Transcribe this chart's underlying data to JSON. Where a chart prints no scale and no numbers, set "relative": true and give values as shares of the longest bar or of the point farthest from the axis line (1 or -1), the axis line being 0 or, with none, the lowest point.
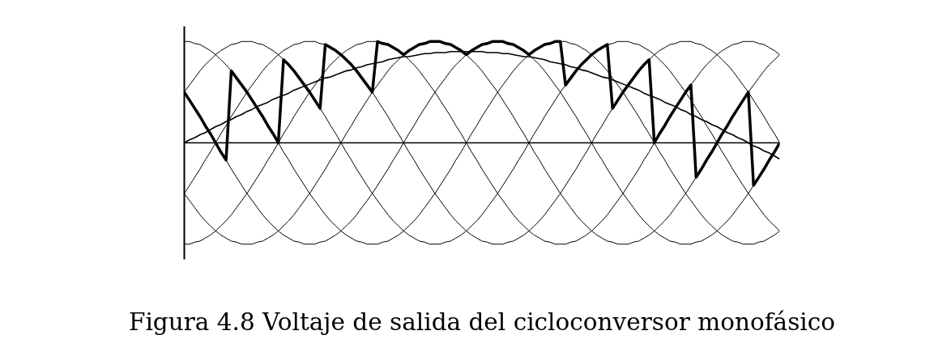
{
  "chart_data": {
    "type": "line",
    "relative": true,
    "title": "Figura 4.8 Voltaje de salida del cicloconversor monofásico",
    "categories": [
      null,
      null,
      null,
      null,
      null,
      null,
      null,
      null,
      null,
      null,
      null,
      null,
      null,
      null,
      null,
      null,
      null,
      null,
      null,
      null,
      null,
      null,
      null,
      null,
      null,
      null,
      null,
      null,
      null,
      null,
      null,
      null,
      null,
      null,
      null,
      null,
      null,
      null,
      null,
      null,
      null,
      null,
      null,
      null,
      null,
      null,
      null,
      null,
      null,
      null,
      null,
      null,
      null,
      null,
      null,
      null,
      null,
      null,
      null,
      null,
      null,
      null,
      null,
      null,
      null,
      null,
      null,
      null,
      null,
      null,
      null,
      null,
      null,
      null,
      null,
      null,
      null,
      null,
      null,
      null,
      null,
      null,
      null,
      null,
      null,
      null,
      null,
      null,
      null,
      null,
      null,
      null,
      null,
      null,
      null,
      null,
      null,
      null,
      null,
      null,
      null,
      null,
      null,
      null,
      null,
      null,
      null,
      null,
      null,
      null,
      null,
      null,
      null,
      null,
      null
    ],
    "series": [
      {
        "color": "#000000",
        "values": [
          1,
          1,
          0.98,
          0.97,
          0.94,
          0.91,
          0.87,
          0.82,
          0.77,
          0.71,
          0.64,
          0.57,
          0.5,
          0.42,
          0.34,
          0.26,
          0.17,
          0.09,
          0,
          -0.09,
          -0.17,
          -0.26,
          -0.34,
          -0.42,
          -0.5,
          -0.57,
          -0.64,
          -0.71,
          -0.77,
          -0.82,
          -0.87,
          -0.91,
          -0.94,
          -0.97,
          -0.98,
          -1,
          -1,
          -1,
          -0.98,
          -0.97,
          -0.94,
          -0.91,
          -0.87,
          -0.82,
          -0.77,
          -0.71,
          -0.64,
          -0.57,
          -0.5,
          -0.42,
          -0.34,
          -0.26,
          -0.17,
          -0.09,
          0,
          0.09,
          0.17,
          0.26,
          0.34,
          0.42,
          0.5,
          0.57,
          0.64,
          0.71,
          0.77,
          0.82,
          0.87,
          0.91,
          0.94,
          0.97,
          0.98,
          1,
          1,
          1,
          0.98,
          0.97,
          0.94,
          0.91,
          0.87,
          0.82,
          0.77,
          0.71,
          0.64,
          0.57,
          0.5,
          0.42,
          0.34,
          0.26,
          0.17,
          0.09,
          0,
          -0.09,
          -0.17,
          -0.26,
          -0.34,
          -0.42,
          -0.5,
          -0.57,
          -0.64,
          -0.71,
          -0.77,
          -0.82,
          -0.87,
          -0.91,
          -0.94,
          -0.97,
          -0.98,
          -1,
          -1,
          -1,
          -0.98,
          -0.97,
          -0.94,
          -0.91,
          -0.87
        ]
      },
      {
        "color": "#000000",
        "values": [
          0.5,
          0.57,
          0.64,
          0.71,
          0.77,
          0.82,
          0.87,
          0.91,
          0.94,
          0.97,
          0.98,
          1,
          1,
          1,
          0.98,
          0.97,
          0.94,
          0.91,
          0.87,
          0.82,
          0.77,
          0.71,
          0.64,
          0.57,
          0.5,
          0.42,
          0.34,
          0.26,
          0.17,
          0.09,
          0,
          -0.09,
          -0.17,
          -0.26,
          -0.34,
          -0.42,
          -0.5,
          -0.57,
          -0.64,
          -0.71,
          -0.77,
          -0.82,
          -0.87,
          -0.91,
          -0.94,
          -0.97,
          -0.98,
          -1,
          -1,
          -1,
          -0.98,
          -0.97,
          -0.94,
          -0.91,
          -0.87,
          -0.82,
          -0.77,
          -0.71,
          -0.64,
          -0.57,
          -0.5,
          -0.42,
          -0.34,
          -0.26,
          -0.17,
          -0.09,
          0,
          0.09,
          0.17,
          0.26,
          0.34,
          0.42,
          0.5,
          0.57,
          0.64,
          0.71,
          0.77,
          0.82,
          0.87,
          0.91,
          0.94,
          0.97,
          0.98,
          1,
          1,
          1,
          0.98,
          0.97,
          0.94,
          0.91,
          0.87,
          0.82,
          0.77,
          0.71,
          0.64,
          0.57,
          0.5,
          0.42,
          0.34,
          0.26,
          0.17,
          0.09,
          0,
          -0.09,
          -0.17,
          -0.26,
          -0.34,
          -0.42,
          -0.5,
          -0.57,
          -0.64,
          -0.71,
          -0.77,
          -0.82,
          -0.87
        ]
      },
      {
        "color": "#000000",
        "values": [
          -0.5,
          -0.42,
          -0.34,
          -0.26,
          -0.17,
          -0.09,
          0,
          0.09,
          0.17,
          0.26,
          0.34,
          0.42,
          0.5,
          0.57,
          0.64,
          0.71,
          0.77,
          0.82,
          0.87,
          0.91,
          0.94,
          0.97,
          0.98,
          1,
          1,
          1,
          0.98,
          0.97,
          0.94,
          0.91,
          0.87,
          0.82,
          0.77,
          0.71,
          0.64,
          0.57,
          0.5,
          0.42,
          0.34,
          0.26,
          0.17,
          0.09,
          0,
          -0.09,
          -0.17,
          -0.26,
          -0.34,
          -0.42,
          -0.5,
          -0.57,
          -0.64,
          -0.71,
          -0.77,
          -0.82,
          -0.87,
          -0.91,
          -0.94,
          -0.97,
          -0.98,
          -1,
          -1,
          -1,
          -0.98,
          -0.97,
          -0.94,
          -0.91,
          -0.87,
          -0.82,
          -0.77,
          -0.71,
          -0.64,
          -0.57,
          -0.5,
          -0.42,
          -0.34,
          -0.26,
          -0.17,
          -0.09,
          0,
          0.09,
          0.17,
          0.26,
          0.34,
          0.42,
          0.5,
          0.57,
          0.64,
          0.71,
          0.77,
          0.82,
          0.87,
          0.91,
          0.94,
          0.97,
          0.98,
          1,
          1,
          1,
          0.98,
          0.97,
          0.94,
          0.91,
          0.87,
          0.82,
          0.77,
          0.71,
          0.64,
          0.57,
          0.5,
          0.42,
          0.34,
          0.26,
          0.17,
          0.09,
          0
        ]
      },
      {
        "color": "#000000",
        "values": [
          -1,
          -1,
          -0.98,
          -0.97,
          -0.94,
          -0.91,
          -0.87,
          -0.82,
          -0.77,
          -0.71,
          -0.64,
          -0.57,
          -0.5,
          -0.42,
          -0.34,
          -0.26,
          -0.17,
          -0.09,
          0,
          0.09,
          0.17,
          0.26,
          0.34,
          0.42,
          0.5,
          0.57,
          0.64,
          0.71,
          0.77,
          0.82,
          0.87,
          0.91,
          0.94,
          0.97,
          0.98,
          1,
          1,
          1,
          0.98,
          0.97,
          0.94,
          0.91,
          0.87,
          0.82,
          0.77,
          0.71,
          0.64,
          0.57,
          0.5,
          0.42,
          0.34,
          0.26,
          0.17,
          0.09,
          0,
          -0.09,
          -0.17,
          -0.26,
          -0.34,
          -0.42,
          -0.5,
          -0.57,
          -0.64,
          -0.71,
          -0.77,
          -0.82,
          -0.87,
          -0.91,
          -0.94,
          -0.97,
          -0.98,
          -1,
          -1,
          -1,
          -0.98,
          -0.97,
          -0.94,
          -0.91,
          -0.87,
          -0.82,
          -0.77,
          -0.71,
          -0.64,
          -0.57,
          -0.5,
          -0.42,
          -0.34,
          -0.26,
          -0.17,
          -0.09,
          0,
          0.09,
          0.17,
          0.26,
          0.34,
          0.42,
          0.5,
          0.57,
          0.64,
          0.71,
          0.77,
          0.82,
          0.87,
          0.91,
          0.94,
          0.97,
          0.98,
          1,
          1,
          1,
          0.98,
          0.97,
          0.94,
          0.91,
          0.87
        ]
      },
      {
        "color": "#000000",
        "values": [
          -0.5,
          -0.57,
          -0.64,
          -0.71,
          -0.77,
          -0.82,
          -0.87,
          -0.91,
          -0.94,
          -0.97,
          -0.98,
          -1,
          -1,
          -1,
          -0.98,
          -0.97,
          -0.94,
          -0.91,
          -0.87,
          -0.82,
          -0.77,
          -0.71,
          -0.64,
          -0.57,
          -0.5,
          -0.42,
          -0.34,
          -0.26,
          -0.17,
          -0.09,
          0,
          0.09,
          0.17,
          0.26,
          0.34,
          0.42,
          0.5,
          0.57,
          0.64,
          0.71,
          0.77,
          0.82,
          0.87,
          0.91,
          0.94,
          0.97,
          0.98,
          1,
          1,
          1,
          0.98,
          0.97,
          0.94,
          0.91,
          0.87,
          0.82,
          0.77,
          0.71,
          0.64,
          0.57,
          0.5,
          0.42,
          0.34,
          0.26,
          0.17,
          0.09,
          0,
          -0.09,
          -0.17,
          -0.26,
          -0.34,
          -0.42,
          -0.5,
          -0.57,
          -0.64,
          -0.71,
          -0.77,
          -0.82,
          -0.87,
          -0.91,
          -0.94,
          -0.97,
          -0.98,
          -1,
          -1,
          -1,
          -0.98,
          -0.97,
          -0.94,
          -0.91,
          -0.87,
          -0.82,
          -0.77,
          -0.71,
          -0.64,
          -0.57,
          -0.5,
          -0.42,
          -0.34,
          -0.26,
          -0.17,
          -0.09,
          0,
          0.09,
          0.17,
          0.26,
          0.34,
          0.42,
          0.5,
          0.57,
          0.64,
          0.71,
          0.77,
          0.82,
          0.87
        ]
      },
      {
        "color": "#000000",
        "values": [
          0.5,
          0.42,
          0.34,
          0.26,
          0.17,
          0.09,
          0,
          -0.09,
          -0.17,
          -0.26,
          -0.34,
          -0.42,
          -0.5,
          -0.57,
          -0.64,
          -0.71,
          -0.77,
          -0.82,
          -0.87,
          -0.91,
          -0.94,
          -0.97,
          -0.98,
          -1,
          -1,
          -1,
          -0.98,
          -0.97,
          -0.94,
          -0.91,
          -0.87,
          -0.82,
          -0.77,
          -0.71,
          -0.64,
          -0.57,
          -0.5,
          -0.42,
          -0.34,
          -0.26,
          -0.17,
          -0.09,
          0,
          0.09,
          0.17,
          0.26,
          0.34,
          0.42,
          0.5,
          0.57,
          0.64,
          0.71,
          0.77,
          0.82,
          0.87,
          0.91,
          0.94,
          0.97,
          0.98,
          1,
          1,
          1,
          0.98,
          0.97,
          0.94,
          0.91,
          0.87,
          0.82,
          0.77,
          0.71,
          0.64,
          0.57,
          0.5,
          0.42,
          0.34,
          0.26,
          0.17,
          0.09,
          0,
          -0.09,
          -0.17,
          -0.26,
          -0.34,
          -0.42,
          -0.5,
          -0.57,
          -0.64,
          -0.71,
          -0.77,
          -0.82,
          -0.87,
          -0.91,
          -0.94,
          -0.97,
          -0.98,
          -1,
          -1,
          -1,
          -0.98,
          -0.97,
          -0.94,
          -0.91,
          -0.87,
          -0.82,
          -0.77,
          -0.71,
          -0.64,
          -0.57,
          -0.5,
          -0.42,
          -0.34,
          -0.26,
          -0.17,
          -0.09,
          0
        ]
      },
      {
        "color": "#000000",
        "values": [
          0,
          0.03,
          0.05,
          0.08,
          0.1,
          0.13,
          0.16,
          0.18,
          0.21,
          0.23,
          0.26,
          0.28,
          0.31,
          0.33,
          0.36,
          0.38,
          0.4,
          0.43,
          0.45,
          0.47,
          0.49,
          0.52,
          0.54,
          0.56,
          0.58,
          0.6,
          0.62,
          0.64,
          0.65,
          0.67,
          0.69,
          0.71,
          0.72,
          0.74,
          0.75,
          0.77,
          0.78,
          0.79,
          0.8,
          0.82,
          0.83,
          0.84,
          0.85,
          0.85,
          0.86,
          0.87,
          0.88,
          0.88,
          0.89,
          0.89,
          0.89,
          0.9,
          0.9,
          0.9,
          0.9,
          0.9,
          0.9,
          0.9,
          0.89,
          0.89,
          0.89,
          0.88,
          0.88,
          0.87,
          0.86,
          0.85,
          0.85,
          0.84,
          0.83,
          0.82,
          0.8,
          0.79,
          0.78,
          0.77,
          0.75,
          0.74,
          0.72,
          0.71,
          0.69,
          0.67,
          0.65,
          0.64,
          0.62,
          0.6,
          0.58,
          0.56,
          0.54,
          0.52,
          0.49,
          0.47,
          0.45,
          0.43,
          0.4,
          0.38,
          0.36,
          0.33,
          0.31,
          0.28,
          0.26,
          0.23,
          0.21,
          0.18,
          0.16,
          0.13,
          0.1,
          0.08,
          0.05,
          0.03,
          0,
          -0.03,
          -0.05,
          -0.08,
          -0.1,
          -0.13,
          -0.16
        ]
      },
      {
        "color": "#000000",
        "values": [
          0.5,
          0.42,
          0.34,
          0.26,
          0.17,
          0.09,
          0,
          -0.09,
          -0.17,
          0.71,
          0.64,
          0.57,
          0.5,
          0.42,
          0.34,
          0.26,
          0.17,
          0.09,
          0,
          0.82,
          0.77,
          0.71,
          0.64,
          0.57,
          0.5,
          0.42,
          0.34,
          0.97,
          0.94,
          0.91,
          0.87,
          0.82,
          0.77,
          0.71,
          0.64,
          0.57,
          0.5,
          1,
          0.98,
          0.97,
          0.94,
          0.91,
          0.87,
          0.91,
          0.94,
          0.97,
          0.98,
          1,
          1,
          1,
          0.98,
          0.97,
          0.94,
          0.91,
          0.87,
          0.91,
          0.94,
          0.97,
          0.98,
          1,
          1,
          1,
          0.98,
          0.97,
          0.94,
          0.91,
          0.87,
          0.91,
          0.94,
          0.97,
          0.98,
          1,
          1,
          0.57,
          0.64,
          0.71,
          0.77,
          0.82,
          0.87,
          0.91,
          0.94,
          0.97,
          0.34,
          0.42,
          0.5,
          0.57,
          0.64,
          0.71,
          0.77,
          0.82,
          0,
          0.09,
          0.17,
          0.26,
          0.34,
          0.42,
          0.5,
          0.57,
          -0.34,
          -0.26,
          -0.17,
          -0.09,
          0,
          0.09,
          0.17,
          0.26,
          0.34,
          0.42,
          0.5,
          -0.42,
          -0.34,
          -0.26,
          -0.17,
          -0.09,
          0
        ]
      }
    ]
  }
}
